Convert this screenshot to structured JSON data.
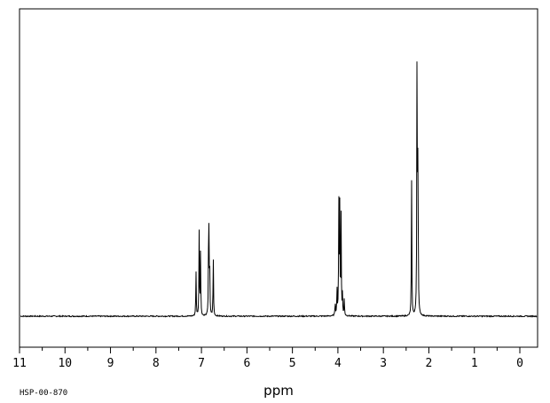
{
  "chart_data": {
    "type": "line",
    "title": "",
    "xlabel": "ppm",
    "ylabel": "",
    "x_reversed": true,
    "xlim": [
      11,
      0
    ],
    "ylim": [
      0,
      1
    ],
    "grid": false,
    "x_ticks": [
      {
        "value": 11,
        "label": "11"
      },
      {
        "value": 10,
        "label": "10"
      },
      {
        "value": 9,
        "label": "9"
      },
      {
        "value": 8,
        "label": "8"
      },
      {
        "value": 7,
        "label": "7"
      },
      {
        "value": 6,
        "label": "6"
      },
      {
        "value": 5,
        "label": "5"
      },
      {
        "value": 4,
        "label": "4"
      },
      {
        "value": 3,
        "label": "3"
      },
      {
        "value": 2,
        "label": "2"
      },
      {
        "value": 1,
        "label": "1"
      },
      {
        "value": 0,
        "label": "0"
      }
    ],
    "series": [
      {
        "color": "#000000",
        "peaks": [
          {
            "ppm": 7.12,
            "height": 0.16
          },
          {
            "ppm": 7.05,
            "height": 0.3
          },
          {
            "ppm": 7.02,
            "height": 0.23
          },
          {
            "ppm": 6.84,
            "height": 0.44
          },
          {
            "ppm": 6.82,
            "height": 0.2
          },
          {
            "ppm": 6.74,
            "height": 0.21
          },
          {
            "ppm": 4.06,
            "height": 0.05
          },
          {
            "ppm": 4.02,
            "height": 0.1
          },
          {
            "ppm": 3.98,
            "height": 0.4
          },
          {
            "ppm": 3.96,
            "height": 0.38
          },
          {
            "ppm": 3.93,
            "height": 0.35
          },
          {
            "ppm": 3.9,
            "height": 0.07
          },
          {
            "ppm": 3.86,
            "height": 0.06
          },
          {
            "ppm": 2.38,
            "height": 0.48
          },
          {
            "ppm": 2.26,
            "height": 1.0
          },
          {
            "ppm": 2.24,
            "height": 0.6
          }
        ]
      }
    ]
  },
  "footer": {
    "code": "HSP-00-870"
  }
}
